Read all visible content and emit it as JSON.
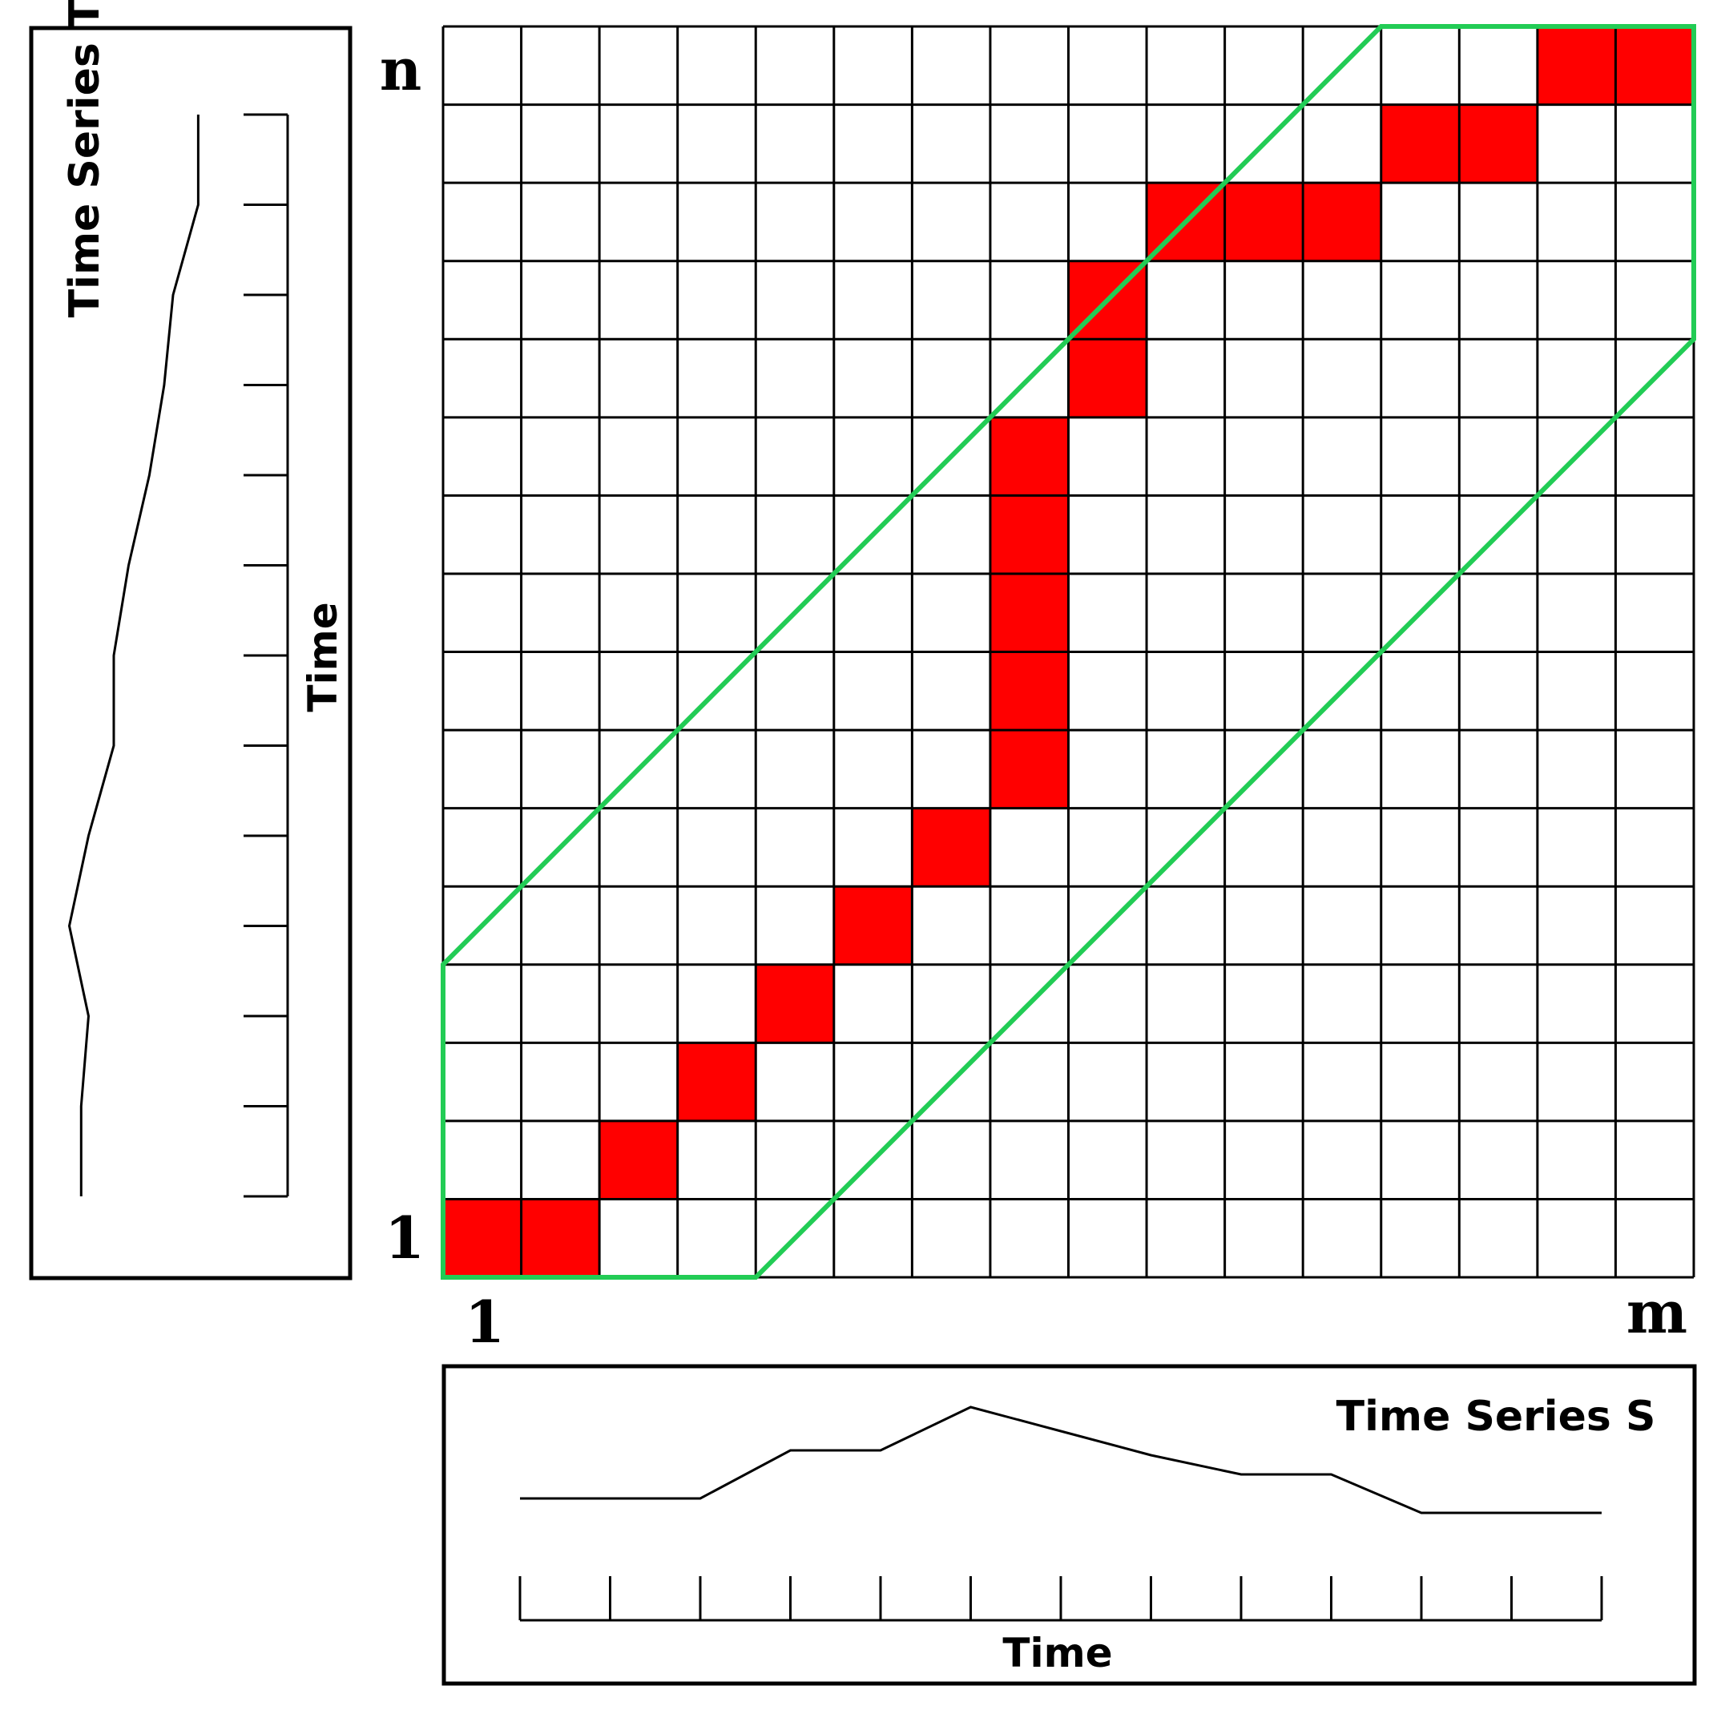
{
  "colors": {
    "path_cell": "#ff0000",
    "band": "#22cc55",
    "grid": "#000000",
    "background": "#ffffff"
  },
  "matrix": {
    "cols": 16,
    "rows": 16,
    "warping_path": [
      [
        1,
        1
      ],
      [
        2,
        1
      ],
      [
        3,
        2
      ],
      [
        4,
        3
      ],
      [
        5,
        4
      ],
      [
        6,
        5
      ],
      [
        7,
        6
      ],
      [
        8,
        7
      ],
      [
        8,
        8
      ],
      [
        8,
        9
      ],
      [
        8,
        10
      ],
      [
        8,
        11
      ],
      [
        9,
        12
      ],
      [
        9,
        13
      ],
      [
        10,
        14
      ],
      [
        11,
        14
      ],
      [
        12,
        14
      ],
      [
        13,
        15
      ],
      [
        14,
        15
      ],
      [
        15,
        16
      ],
      [
        16,
        16
      ]
    ],
    "band_polygon": [
      [
        0,
        4
      ],
      [
        12,
        16
      ],
      [
        16,
        16
      ],
      [
        16,
        12
      ],
      [
        4,
        0
      ],
      [
        0,
        0
      ]
    ]
  },
  "labels": {
    "row_top": "n",
    "row_bottom": "1",
    "col_left": "1",
    "col_right": "m"
  },
  "series_t": {
    "title": "Time Series T",
    "axis_label": "Time",
    "ticks": 13,
    "values": [
      1.8,
      1.8,
      2.3,
      1.0,
      2.3,
      4.0,
      4.0,
      5.0,
      6.4,
      7.4,
      8.0,
      9.7,
      9.7
    ]
  },
  "series_s": {
    "title": "Time Series S",
    "axis_label": "Time",
    "ticks": 13,
    "values": [
      1.0,
      1.0,
      1.0,
      2.0,
      2.0,
      2.9,
      2.4,
      1.9,
      1.5,
      1.5,
      0.7,
      0.7,
      0.7
    ]
  }
}
